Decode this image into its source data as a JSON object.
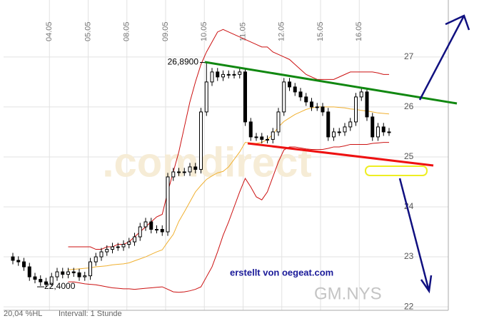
{
  "chart_data": {
    "type": "candlestick",
    "categories": [
      null,
      null,
      null,
      null,
      null,
      null,
      null,
      "04.05",
      null,
      null,
      null,
      null,
      null,
      null,
      "05.05",
      null,
      null,
      null,
      null,
      null,
      null,
      "08.05",
      null,
      null,
      null,
      null,
      null,
      null,
      "09.05",
      null,
      null,
      null,
      null,
      null,
      null,
      "10.05",
      null,
      null,
      null,
      null,
      null,
      null,
      "11.05",
      null,
      null,
      null,
      null,
      null,
      null,
      "12.05",
      null,
      null,
      null,
      null,
      null,
      null,
      "15.05",
      null,
      null,
      null,
      null,
      null,
      null,
      "16.05",
      null,
      null,
      null,
      null,
      null
    ],
    "open": [
      23.0,
      22.93,
      22.9,
      22.8,
      22.6,
      22.55,
      22.5,
      22.45,
      22.6,
      22.7,
      22.65,
      22.7,
      22.68,
      22.6,
      22.62,
      22.9,
      23.0,
      23.1,
      23.15,
      23.2,
      23.2,
      23.25,
      23.3,
      23.4,
      23.6,
      23.7,
      23.55,
      23.55,
      23.5,
      24.6,
      24.7,
      24.7,
      24.7,
      24.8,
      24.75,
      25.9,
      26.5,
      26.7,
      26.6,
      26.65,
      26.65,
      26.65,
      26.7,
      25.7,
      25.4,
      25.4,
      25.35,
      25.35,
      25.5,
      25.9,
      26.5,
      26.4,
      26.3,
      26.2,
      26.1,
      26.0,
      26.0,
      25.9,
      25.4,
      25.5,
      25.5,
      25.6,
      25.7,
      26.2,
      26.3,
      25.8,
      25.4,
      25.6,
      25.5
    ],
    "high": [
      23.08,
      23.01,
      22.98,
      22.88,
      22.68,
      22.63,
      22.58,
      22.68,
      22.78,
      22.78,
      22.78,
      22.78,
      22.76,
      22.7,
      22.98,
      23.08,
      23.18,
      23.23,
      23.28,
      23.28,
      23.33,
      23.38,
      23.48,
      23.68,
      23.78,
      23.78,
      23.63,
      23.63,
      24.68,
      24.78,
      24.78,
      24.78,
      24.88,
      24.88,
      25.98,
      26.89,
      26.78,
      26.78,
      26.73,
      26.73,
      26.73,
      26.78,
      26.78,
      25.78,
      25.48,
      25.48,
      25.43,
      25.58,
      25.98,
      26.58,
      26.58,
      26.48,
      26.38,
      26.28,
      26.18,
      26.08,
      26.08,
      25.98,
      25.58,
      25.58,
      25.68,
      25.78,
      26.28,
      26.38,
      26.38,
      25.88,
      25.68,
      25.68,
      25.58
    ],
    "low": [
      22.85,
      22.82,
      22.72,
      22.52,
      22.47,
      22.42,
      22.4,
      22.42,
      22.52,
      22.57,
      22.57,
      22.6,
      22.52,
      22.52,
      22.54,
      22.82,
      22.92,
      23.02,
      23.07,
      23.12,
      23.12,
      23.17,
      23.22,
      23.32,
      23.52,
      23.47,
      23.47,
      23.42,
      23.42,
      24.52,
      24.62,
      24.62,
      24.62,
      24.67,
      24.67,
      25.82,
      26.42,
      26.52,
      26.52,
      26.57,
      26.57,
      26.57,
      25.62,
      25.32,
      25.32,
      25.27,
      25.27,
      25.27,
      25.42,
      25.82,
      26.32,
      26.22,
      26.12,
      26.02,
      25.92,
      25.92,
      25.82,
      25.32,
      25.32,
      25.42,
      25.42,
      25.52,
      25.62,
      26.12,
      25.72,
      25.32,
      25.32,
      25.42,
      25.42
    ],
    "close": [
      22.93,
      22.9,
      22.8,
      22.6,
      22.55,
      22.5,
      22.45,
      22.6,
      22.7,
      22.65,
      22.7,
      22.68,
      22.6,
      22.62,
      22.9,
      23.0,
      23.1,
      23.15,
      23.2,
      23.2,
      23.25,
      23.3,
      23.4,
      23.6,
      23.7,
      23.55,
      23.55,
      23.5,
      24.6,
      24.7,
      24.7,
      24.7,
      24.8,
      24.75,
      25.9,
      26.5,
      26.7,
      26.6,
      26.65,
      26.65,
      26.65,
      26.7,
      25.7,
      25.4,
      25.4,
      25.35,
      25.35,
      25.5,
      25.9,
      26.5,
      26.4,
      26.3,
      26.2,
      26.1,
      26.0,
      26.0,
      25.9,
      25.4,
      25.5,
      25.5,
      25.6,
      25.7,
      26.2,
      26.3,
      25.8,
      25.4,
      25.6,
      25.5,
      25.5
    ],
    "bands": [
      {
        "color": "#cc1111",
        "values": [
          null,
          null,
          null,
          null,
          null,
          null,
          null,
          null,
          null,
          null,
          23.2,
          23.2,
          23.2,
          23.2,
          23.2,
          23.15,
          23.15,
          23.2,
          23.2,
          23.25,
          23.25,
          23.3,
          23.4,
          23.5,
          23.6,
          23.7,
          23.8,
          23.85,
          24.3,
          24.7,
          25.1,
          25.6,
          26.1,
          26.5,
          26.85,
          27.1,
          27.3,
          27.5,
          27.55,
          27.5,
          27.45,
          27.4,
          27.35,
          27.3,
          27.25,
          27.2,
          27.2,
          27.1,
          27.05,
          27.0,
          26.95,
          26.85,
          26.75,
          26.65,
          26.6,
          26.55,
          26.55,
          26.55,
          26.55,
          26.6,
          26.65,
          26.7,
          26.7,
          26.7,
          26.7,
          26.7,
          26.68,
          26.65,
          26.65
        ]
      },
      {
        "color": "#f0b030",
        "values": [
          null,
          null,
          null,
          null,
          null,
          null,
          null,
          null,
          null,
          null,
          22.74,
          22.75,
          22.76,
          22.77,
          22.78,
          22.8,
          22.81,
          22.82,
          22.84,
          22.85,
          22.86,
          22.88,
          22.92,
          22.96,
          23.0,
          23.05,
          23.1,
          23.14,
          23.3,
          23.45,
          23.71,
          23.9,
          24.1,
          24.3,
          24.43,
          24.55,
          24.62,
          24.68,
          24.71,
          24.8,
          24.95,
          25.1,
          25.29,
          25.28,
          25.27,
          25.29,
          25.35,
          25.45,
          25.6,
          25.71,
          25.78,
          25.85,
          25.9,
          25.95,
          25.98,
          26.0,
          26.0,
          26.0,
          26.0,
          25.99,
          25.98,
          25.96,
          25.95,
          25.93,
          25.92,
          25.9,
          25.88,
          25.87,
          25.86
        ]
      },
      {
        "color": "#cc1111",
        "values": [
          null,
          null,
          null,
          null,
          null,
          null,
          null,
          null,
          null,
          null,
          22.5,
          22.5,
          22.48,
          22.46,
          22.45,
          22.44,
          22.42,
          22.4,
          22.38,
          22.37,
          22.36,
          22.36,
          22.35,
          22.36,
          22.37,
          22.38,
          22.39,
          22.4,
          22.35,
          22.3,
          22.29,
          22.3,
          22.32,
          22.35,
          22.4,
          22.6,
          22.8,
          23.1,
          23.43,
          23.7,
          24.0,
          24.3,
          24.57,
          24.4,
          24.2,
          24.14,
          24.3,
          24.6,
          24.9,
          25.14,
          25.2,
          25.2,
          25.18,
          25.16,
          25.15,
          25.15,
          25.15,
          25.17,
          25.2,
          25.2,
          25.22,
          25.25,
          25.25,
          25.25,
          25.25,
          25.27,
          25.28,
          25.29,
          25.29
        ]
      }
    ],
    "ylim": [
      21.93,
      28.14
    ],
    "yticks": [
      22,
      23,
      24,
      25,
      26,
      27
    ],
    "grid": true,
    "high_label": {
      "value": 26.89,
      "label": "26,8900"
    },
    "low_label": {
      "value": 22.4,
      "label": "22,4000"
    },
    "watermark": ".comdirect",
    "annotation": "erstellt von oegeat.com",
    "symbol": "GM.NYS",
    "footer_left": "20,04 %HL",
    "footer_interval": "Intervall: 1 Stunde"
  }
}
